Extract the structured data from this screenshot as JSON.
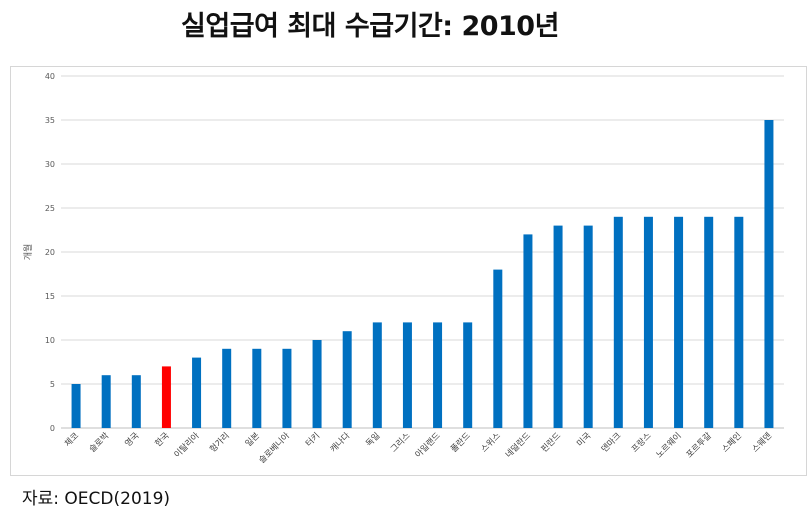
{
  "header": {
    "title": "실업급여 최대 수급기간: 2010년"
  },
  "footer": {
    "source": "자료: OECD(2019)"
  },
  "colors": {
    "default_bar": "#0070C0",
    "highlight_bar": "#FF0000",
    "grid": "#d9d9d9"
  },
  "chart_data": {
    "type": "bar",
    "ylabel": "개월",
    "ylim": [
      0,
      40
    ],
    "yticks": [
      0,
      5,
      10,
      15,
      20,
      25,
      30,
      35,
      40
    ],
    "grid": true,
    "highlight": "한국",
    "categories": [
      "체코",
      "슬로박",
      "영국",
      "한국",
      "이탈리아",
      "헝가리",
      "일본",
      "슬로베니아",
      "터키",
      "캐나다",
      "독일",
      "그리스",
      "아일랜드",
      "폴란드",
      "스위스",
      "네덜란드",
      "핀란드",
      "미국",
      "덴마크",
      "프랑스",
      "노르웨이",
      "포르투갈",
      "스페인",
      "스웨덴"
    ],
    "values": [
      5,
      6,
      6,
      7,
      8,
      9,
      9,
      9,
      10,
      11,
      12,
      12,
      12,
      12,
      18,
      22,
      23,
      23,
      24,
      24,
      24,
      24,
      24,
      35
    ]
  }
}
